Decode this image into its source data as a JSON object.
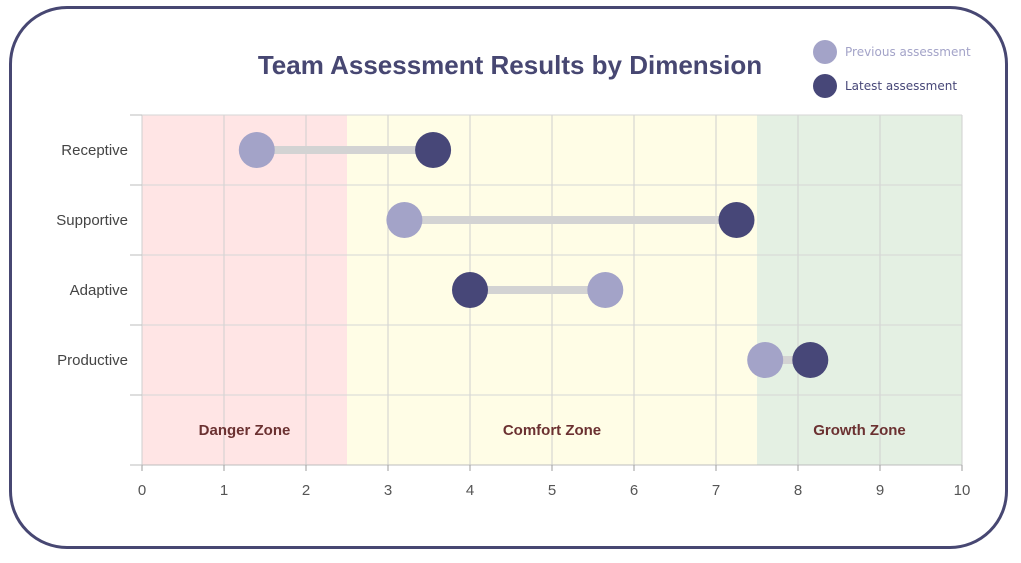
{
  "chart_data": {
    "type": "dumbbell",
    "title": "Team Assessment Results by Dimension",
    "xlim": [
      0,
      10
    ],
    "x_ticks": [
      0,
      1,
      2,
      3,
      4,
      5,
      6,
      7,
      8,
      9,
      10
    ],
    "categories": [
      "Receptive",
      "Supportive",
      "Adaptive",
      "Productive"
    ],
    "series": [
      {
        "name": "Previous assessment",
        "color": "#a3a3c8",
        "values": [
          1.4,
          3.2,
          5.65,
          7.6
        ]
      },
      {
        "name": "Latest assessment",
        "color": "#474778",
        "values": [
          3.55,
          7.25,
          4.0,
          8.15
        ]
      }
    ],
    "zones": [
      {
        "label": "Danger Zone",
        "from": 0,
        "to": 2.5,
        "color": "#ffe5e5"
      },
      {
        "label": "Comfort Zone",
        "from": 2.5,
        "to": 7.5,
        "color": "#fffde6"
      },
      {
        "label": "Growth Zone",
        "from": 7.5,
        "to": 10,
        "color": "#e4f0e3"
      }
    ],
    "grid": true,
    "legend_position": "top-right",
    "connector_color": "#d3d3d3"
  }
}
